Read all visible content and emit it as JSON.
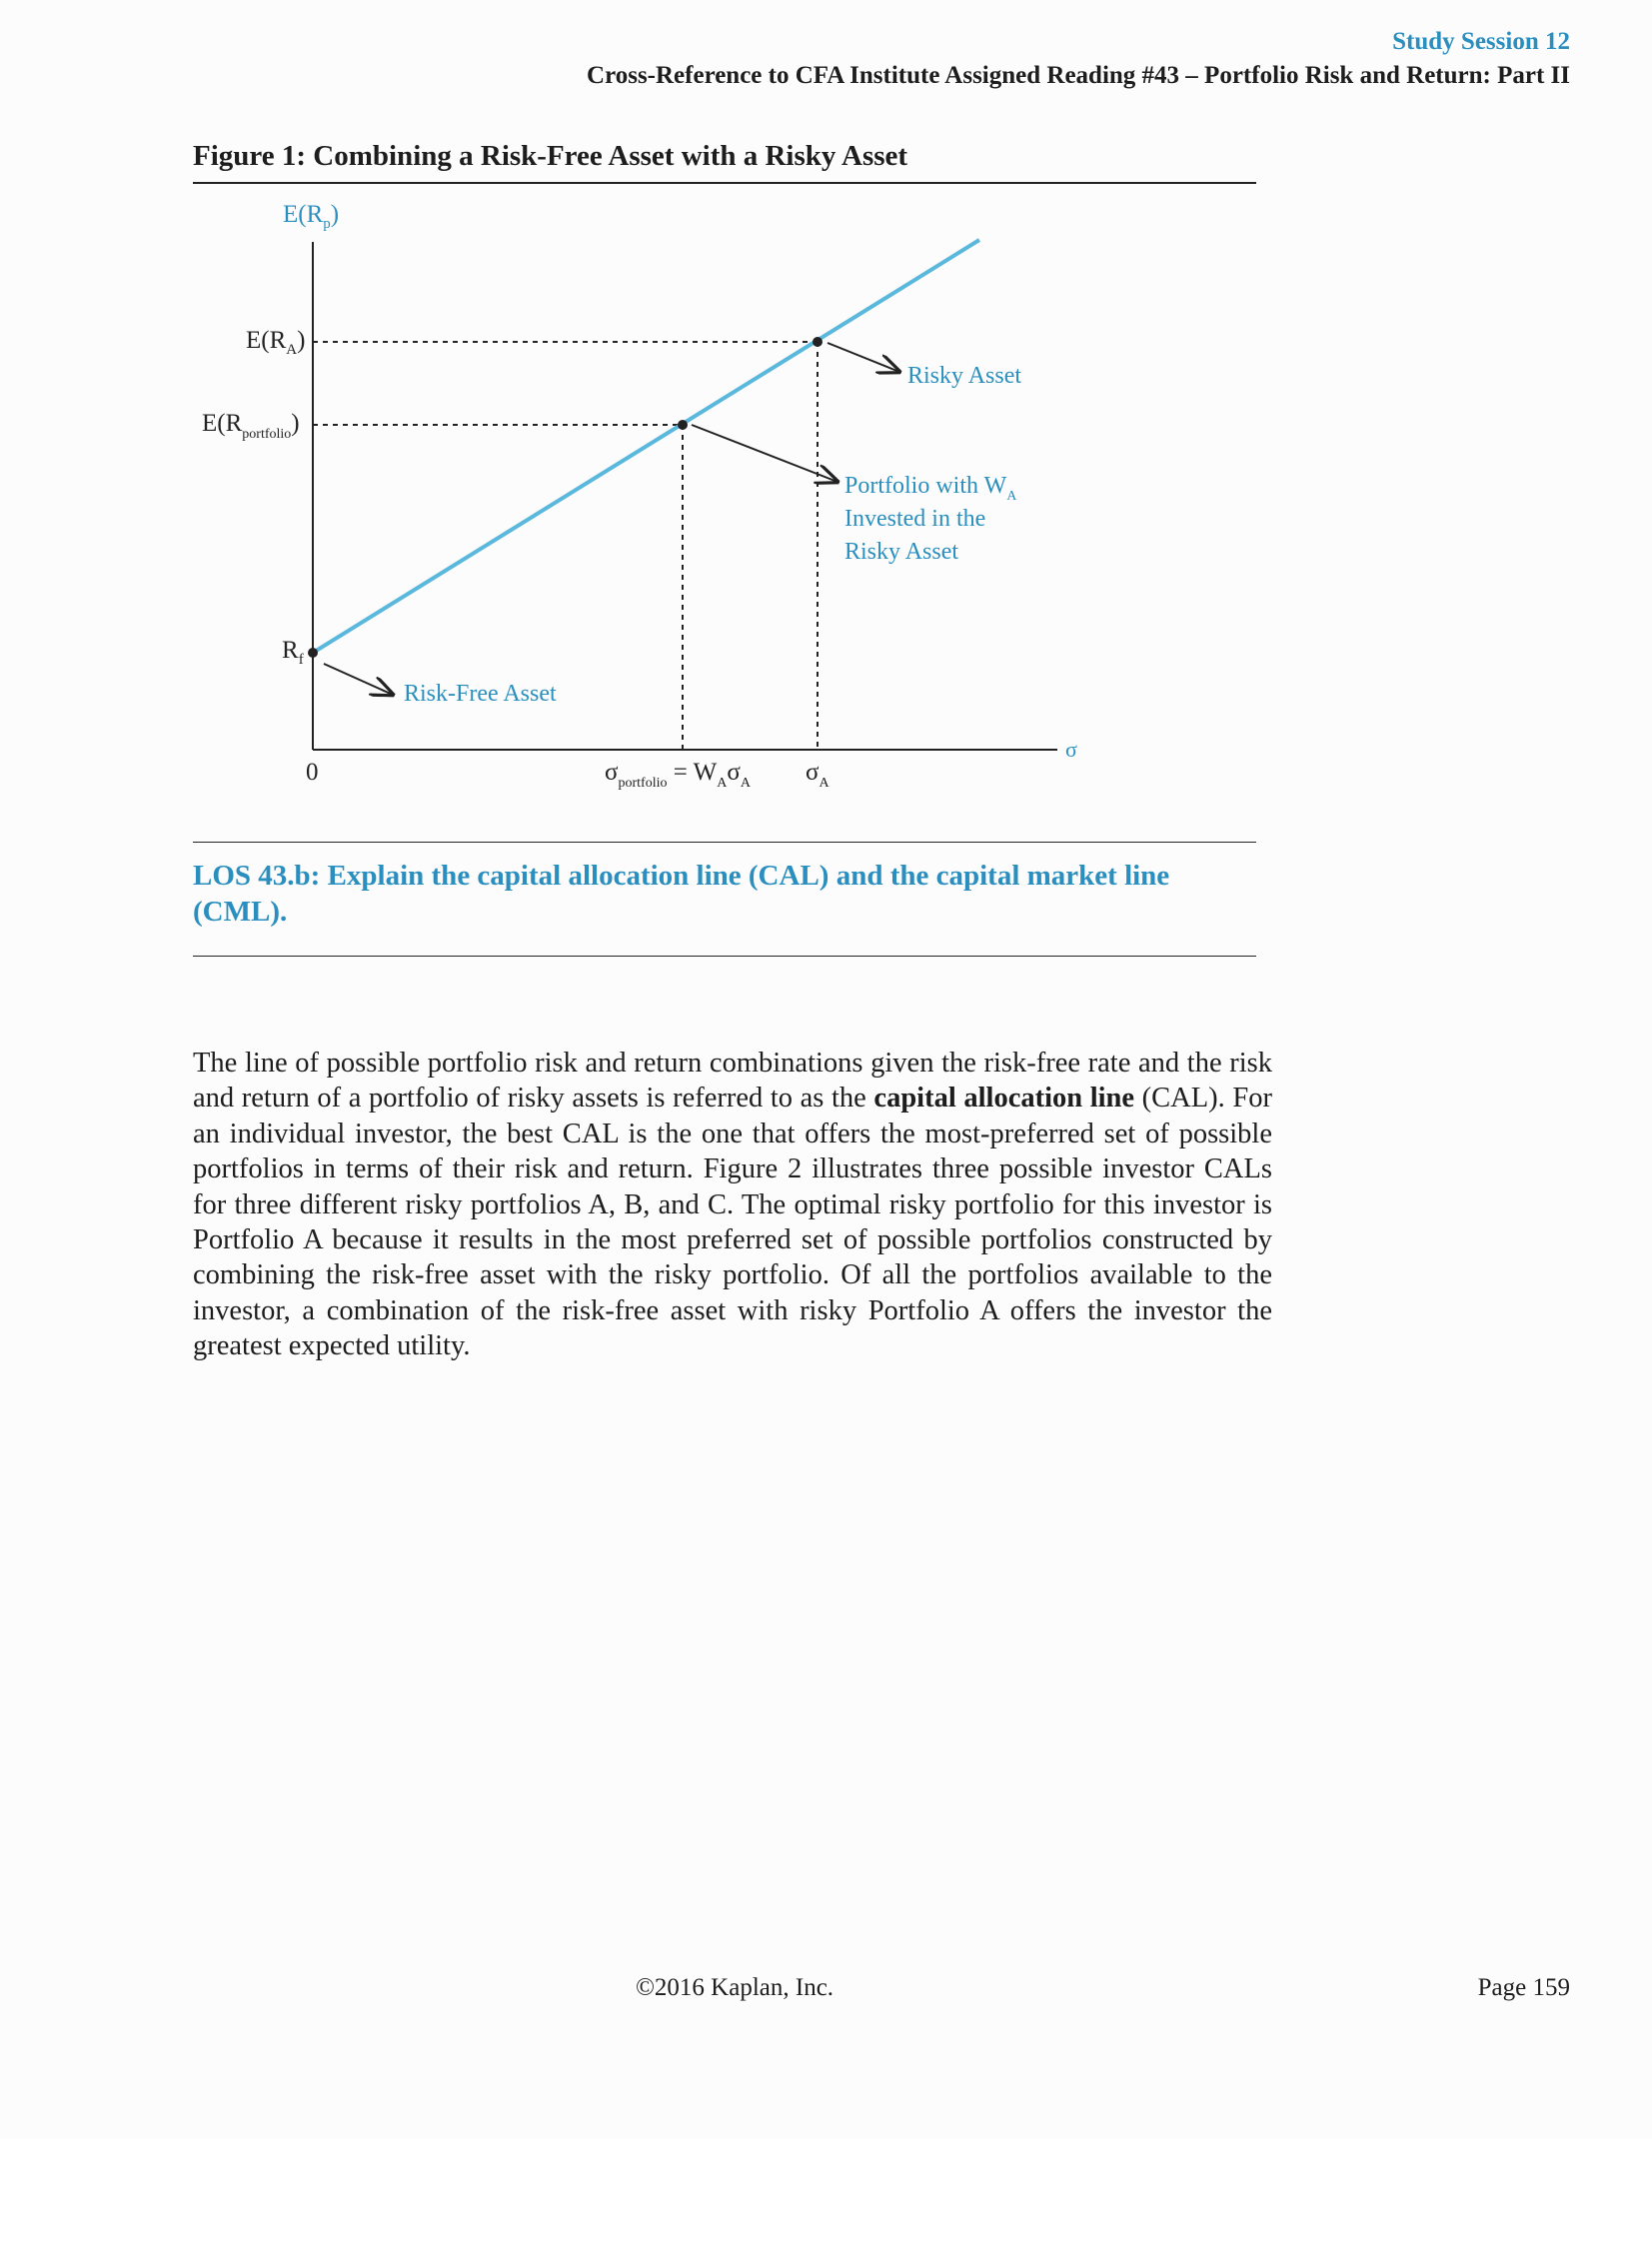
{
  "header": {
    "session": "Study Session 12",
    "reference": "Cross-Reference to CFA Institute Assigned Reading #43 – Portfolio Risk and Return: Part II"
  },
  "figure": {
    "title": "Figure 1: Combining a Risk-Free Asset with a Risky Asset",
    "chart_data": {
      "type": "line",
      "title": "Figure 1: Combining a Risk-Free Asset with a Risky Asset",
      "xlabel": "σ",
      "ylabel": "E(Rp)",
      "x_ticks": [
        "0",
        "σportfolio = WAσA",
        "σA"
      ],
      "y_ticks": [
        "E(RA)",
        "E(Rportfolio)",
        "Rf"
      ],
      "series": [
        {
          "points": [
            [
              0,
              0.28
            ],
            [
              0.4,
              0.58
            ],
            [
              0.6,
              0.73
            ],
            [
              1.0,
              1.0
            ]
          ]
        }
      ],
      "marked_points": [
        {
          "label": "Risk-Free Asset",
          "x": 0,
          "y": 0.28
        },
        {
          "label": "Portfolio with WA Invested in the Risky Asset",
          "x": 0.4,
          "y": 0.58
        },
        {
          "label": "Risky Asset",
          "x": 0.6,
          "y": 0.73
        }
      ],
      "annotations": {
        "risky_asset": "Risky Asset",
        "portfolio_line1": "Portfolio with W",
        "portfolio_sub": "A",
        "portfolio_line2": "Invested in the",
        "portfolio_line3": "Risky Asset",
        "risk_free": "Risk-Free Asset"
      },
      "labels": {
        "y_axis_main": "E(R",
        "y_axis_sub": "p",
        "y_axis_close": ")",
        "era_main": "E(R",
        "era_sub": "A",
        "era_close": ")",
        "erp_main": "E(R",
        "erp_sub": "portfolio",
        "erp_close": ")",
        "rf_main": "R",
        "rf_sub": "f",
        "x_origin": "0",
        "x_axis": "σ",
        "sigma_p_main": "σ",
        "sigma_p_sub": "portfolio",
        "sigma_p_eq": " = W",
        "sigma_p_wsub": "A",
        "sigma_p_sigma": "σ",
        "sigma_p_ssub": "A",
        "sigma_a_main": "σ",
        "sigma_a_sub": "A"
      },
      "colors": {
        "line": "#5bb8dd",
        "label": "#2a8fbf",
        "axis": "#222222"
      },
      "grid": false
    }
  },
  "los": "LOS 43.b: Explain the capital allocation line (CAL) and the capital market line (CML).",
  "body": {
    "part1": "The line of possible portfolio risk and return combinations given the risk-free rate and the risk and return of a portfolio of risky assets is referred to as the ",
    "bold": "capital allocation line",
    "part2": " (CAL). For an individual investor, the best CAL is the one that offers the most-preferred set of possible portfolios in terms of their risk and return. Figure 2 illustrates three possible investor CALs for three different risky portfolios A, B, and C. The optimal risky portfolio for this investor is Portfolio A because it results in the most preferred set of possible portfolios constructed by combining the risk-free asset with the risky portfolio. Of all the portfolios available to the investor, a combination of the risk-free asset with risky Portfolio A offers the investor the greatest expected utility."
  },
  "footer": {
    "copyright": "©2016 Kaplan, Inc.",
    "page": "Page 159"
  }
}
